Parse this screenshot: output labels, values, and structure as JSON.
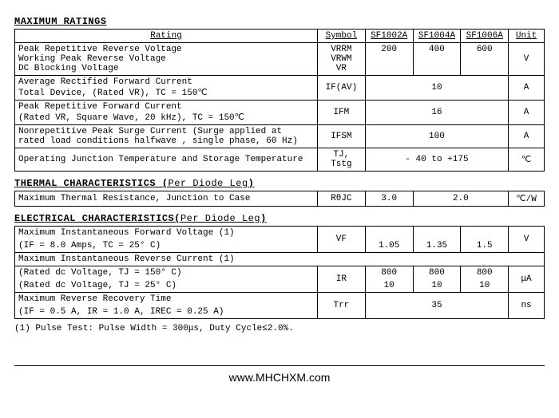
{
  "max_ratings": {
    "title": "MAXIMUM RATINGS",
    "headers": {
      "rating": "Rating",
      "symbol": "Symbol",
      "c1": "SF1002A",
      "c2": "SF1004A",
      "c3": "SF1006A",
      "unit": "Unit"
    },
    "rows": [
      {
        "desc": [
          "Peak Repetitive Reverse Voltage",
          "Working Peak Reverse Voltage",
          "DC Blocking Voltage"
        ],
        "sym_lines": [
          "VRRM",
          "VRWM",
          "VR"
        ],
        "v1": "200",
        "v2": "400",
        "v3": "600",
        "unit": "V"
      },
      {
        "desc": [
          "Average Rectified Forward Current",
          "Total Device, (Rated VR), TC = 150℃"
        ],
        "sym": "IF(AV)",
        "merged": "10",
        "unit": "A"
      },
      {
        "desc": [
          "Peak Repetitive Forward Current",
          "(Rated VR, Square Wave, 20 kHz), TC = 150℃"
        ],
        "sym": "IFM",
        "merged": "16",
        "unit": "A"
      },
      {
        "desc": [
          "Nonrepetitive Peak Surge Current  (Surge applied at",
          " rated load conditions halfwave , single phase, 60 Hz)"
        ],
        "sym": "IFSM",
        "merged": "100",
        "unit": "A"
      },
      {
        "desc": [
          "Operating Junction Temperature and Storage Temperature"
        ],
        "sym": "TJ, Tstg",
        "merged": "- 40 to +175",
        "unit": "℃"
      }
    ]
  },
  "thermal": {
    "title": "THERMAL CHARACTERISTICS (",
    "subtitle": "Per Diode Leg",
    "title_end": ")",
    "row": {
      "desc": "Maximum Thermal Resistance, Junction to Case",
      "sym": "RθJC",
      "v1": "3.0",
      "v23": "2.0",
      "unit": "℃/W"
    }
  },
  "electrical": {
    "title": "ELECTRICAL CHARACTERISTICS(",
    "subtitle": "Per Diode Leg",
    "title_end": ")",
    "rows": {
      "vf_top": "Maximum Instantaneous Forward Voltage (1)",
      "vf_cond": "(IF = 8.0 Amps, TC = 25° C)",
      "vf_sym": "VF",
      "vf_1": "1.05",
      "vf_2": "1.35",
      "vf_3": "1.5",
      "vf_unit": "V",
      "ir_top": "Maximum Instantaneous Reverse Current (1)",
      "ir_cond1": " (Rated dc Voltage, TJ = 150° C)",
      "ir_cond2": " (Rated dc Voltage, TJ = 25° C)",
      "ir_sym": "IR",
      "ir_a1": "800",
      "ir_a2": "800",
      "ir_a3": "800",
      "ir_b1": "10",
      "ir_b2": "10",
      "ir_b3": "10",
      "ir_unit": "μA",
      "trr_top": "Maximum Reverse Recovery Time",
      "trr_cond": "(IF = 0.5 A, IR = 1.0 A, IREC = 0.25 A)",
      "trr_sym": "Trr",
      "trr_val": "35",
      "trr_unit": "ns"
    }
  },
  "note": "(1) Pulse Test: Pulse Width = 300μs, Duty Cycle≤2.0%.",
  "footer": "www.MHCHXM.com"
}
